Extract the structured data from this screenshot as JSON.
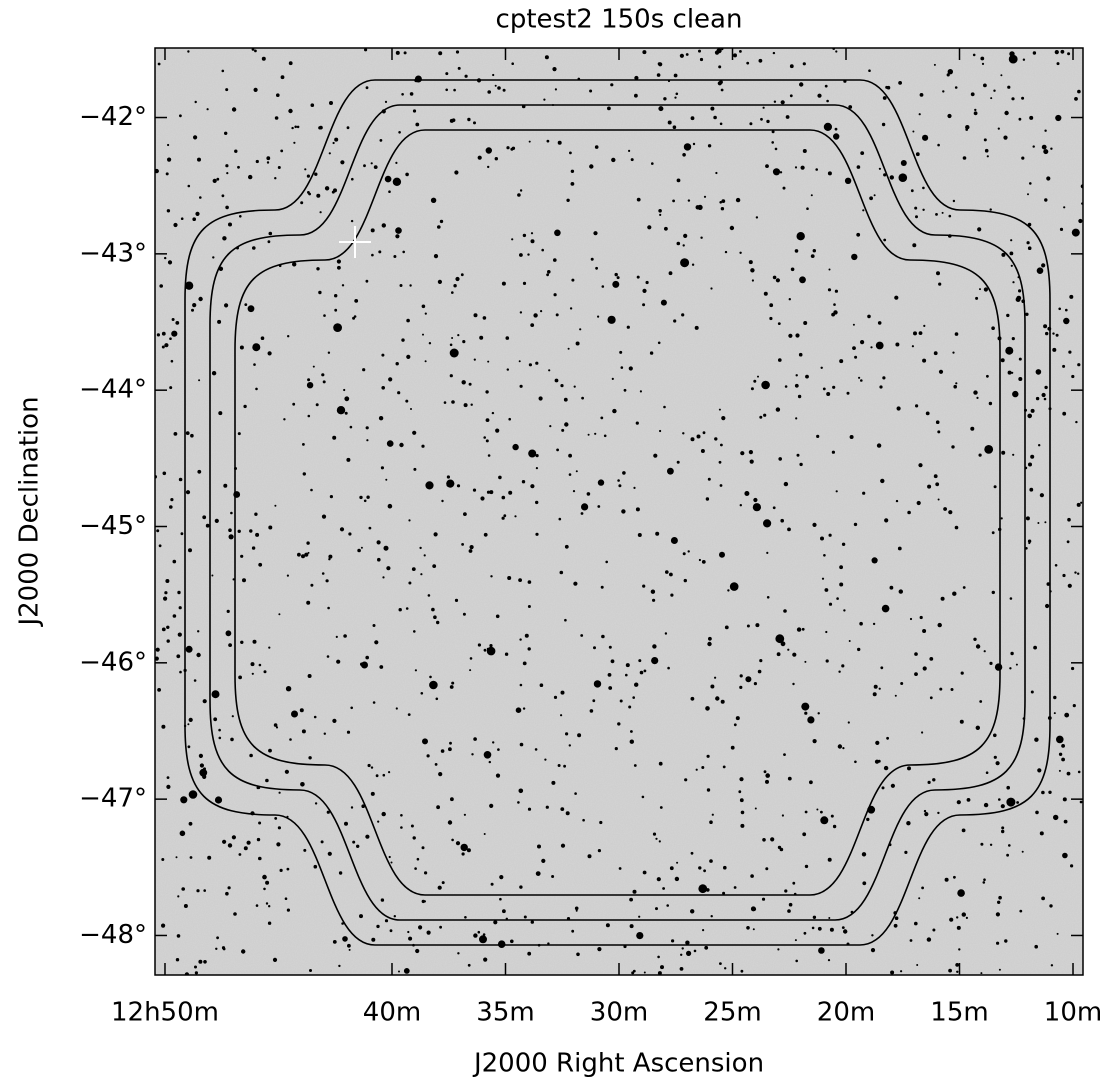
{
  "chart_data": {
    "type": "image",
    "title": "cptest2 150s clean",
    "x_label": "J2000 Right Ascension",
    "y_label": "J2000 Declination",
    "xlim": [
      50.44,
      9.56
    ],
    "ylim": [
      -48.29,
      -41.49
    ],
    "xticks": [
      {
        "value": 50,
        "label": "12h50m"
      },
      {
        "value": 40,
        "label": "40m"
      },
      {
        "value": 35,
        "label": "35m"
      },
      {
        "value": 30,
        "label": "30m"
      },
      {
        "value": 25,
        "label": "25m"
      },
      {
        "value": 20,
        "label": "20m"
      },
      {
        "value": 15,
        "label": "15m"
      },
      {
        "value": 10,
        "label": "10m"
      }
    ],
    "yticks": [
      {
        "value": -42,
        "label": "−42°"
      },
      {
        "value": -43,
        "label": "−43°"
      },
      {
        "value": -44,
        "label": "−44°"
      },
      {
        "value": -45,
        "label": "−45°"
      },
      {
        "value": -46,
        "label": "−46°"
      },
      {
        "value": -47,
        "label": "−47°"
      },
      {
        "value": -48,
        "label": "−48°"
      }
    ]
  }
}
